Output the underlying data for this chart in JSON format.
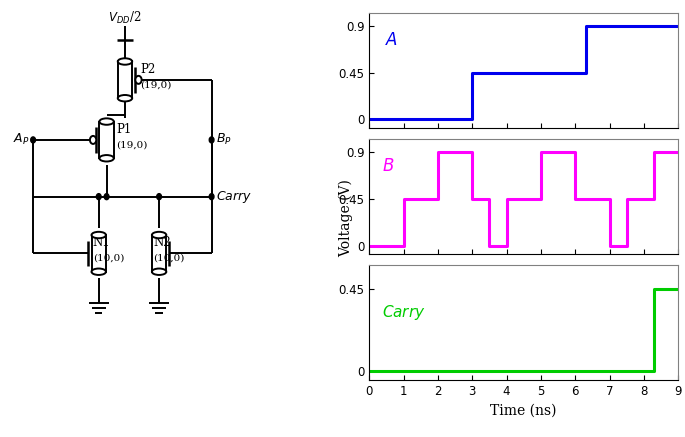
{
  "waveform_A": {
    "color": "#0000EE",
    "label": "A",
    "yticks": [
      0,
      0.45,
      0.9
    ],
    "ytick_labels": [
      "0",
      "0.45",
      "0.9"
    ],
    "ylim": [
      -0.08,
      1.02
    ],
    "x": [
      0,
      3,
      3,
      6.3,
      6.3,
      9
    ],
    "y": [
      0,
      0,
      0.45,
      0.45,
      0.9,
      0.9
    ]
  },
  "waveform_B": {
    "color": "#FF00FF",
    "label": "B",
    "yticks": [
      0,
      0.45,
      0.9
    ],
    "ytick_labels": [
      "0",
      "0.45",
      "0.9"
    ],
    "ylim": [
      -0.08,
      1.02
    ],
    "x": [
      0,
      1.0,
      1.0,
      2.0,
      2.0,
      3.0,
      3.0,
      3.5,
      3.5,
      4.0,
      4.0,
      5.0,
      5.0,
      6.0,
      6.0,
      7.0,
      7.0,
      7.5,
      7.5,
      8.3,
      8.3,
      9
    ],
    "y": [
      0,
      0,
      0.45,
      0.45,
      0.9,
      0.9,
      0.45,
      0.45,
      0,
      0,
      0.45,
      0.45,
      0.9,
      0.9,
      0.45,
      0.45,
      0,
      0,
      0.45,
      0.45,
      0.9,
      0.9
    ]
  },
  "waveform_Carry": {
    "color": "#00CC00",
    "label": "Carry",
    "yticks": [
      0,
      0.45
    ],
    "ytick_labels": [
      "0",
      "0.45"
    ],
    "ylim": [
      -0.05,
      0.58
    ],
    "x": [
      0,
      8.3,
      8.3,
      9
    ],
    "y": [
      0,
      0,
      0.45,
      0.45
    ]
  },
  "xlim": [
    0,
    9
  ],
  "xticks": [
    0,
    1,
    2,
    3,
    4,
    5,
    6,
    7,
    8,
    9
  ],
  "xlabel": "Time (ns)",
  "ylabel": "Voltage (V)",
  "linewidth": 2.2
}
